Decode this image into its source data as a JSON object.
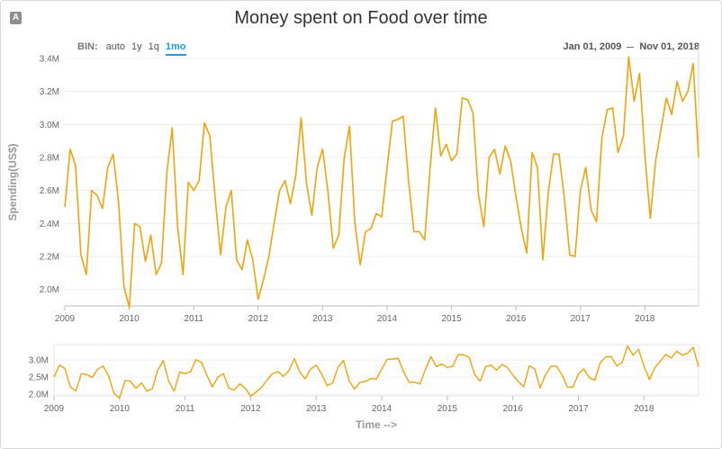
{
  "corner_button": {
    "glyph": "A"
  },
  "bin": {
    "label": "BIN:",
    "options": [
      "auto",
      "1y",
      "1q",
      "1mo"
    ],
    "selected": "1mo"
  },
  "date_range": {
    "start": "Jan 01, 2009",
    "end": "Nov 01, 2018"
  },
  "chart_data": {
    "type": "line",
    "title": "Money spent on Food over time",
    "ylabel": "Spending(US$)",
    "xlabel": "Time -->",
    "line_color": "#f0a30a",
    "ylim": [
      1.9,
      3.4
    ],
    "y_ticks": [
      "2.0M",
      "2.2M",
      "2.4M",
      "2.6M",
      "2.8M",
      "3.0M",
      "3.2M",
      "3.4M"
    ],
    "x_ticks": [
      "2009",
      "2010",
      "2011",
      "2012",
      "2013",
      "2014",
      "2015",
      "2016",
      "2017",
      "2018"
    ],
    "navigator": {
      "ylim": [
        1.95,
        3.45
      ],
      "y_ticks": [
        "2.0M",
        "2.5M",
        "3.0M"
      ]
    },
    "series": [
      {
        "unit": "M US$",
        "start": "2009-01",
        "frequency": "monthly",
        "values": [
          2.5,
          2.85,
          2.75,
          2.21,
          2.09,
          2.6,
          2.57,
          2.49,
          2.74,
          2.82,
          2.53,
          2.02,
          1.89,
          2.4,
          2.38,
          2.17,
          2.33,
          2.09,
          2.16,
          2.71,
          2.98,
          2.38,
          2.09,
          2.65,
          2.6,
          2.66,
          3.01,
          2.93,
          2.55,
          2.21,
          2.5,
          2.6,
          2.18,
          2.12,
          2.3,
          2.18,
          1.94,
          2.06,
          2.2,
          2.41,
          2.6,
          2.66,
          2.52,
          2.69,
          3.04,
          2.64,
          2.45,
          2.74,
          2.85,
          2.59,
          2.25,
          2.33,
          2.79,
          2.99,
          2.4,
          2.15,
          2.35,
          2.37,
          2.46,
          2.44,
          2.74,
          3.02,
          3.03,
          3.05,
          2.66,
          2.35,
          2.35,
          2.3,
          2.73,
          3.1,
          2.81,
          2.88,
          2.78,
          2.82,
          3.16,
          3.15,
          3.07,
          2.58,
          2.38,
          2.8,
          2.85,
          2.7,
          2.87,
          2.78,
          2.56,
          2.37,
          2.22,
          2.83,
          2.74,
          2.18,
          2.58,
          2.82,
          2.82,
          2.56,
          2.21,
          2.2,
          2.6,
          2.74,
          2.48,
          2.41,
          2.92,
          3.09,
          3.1,
          2.83,
          2.93,
          3.41,
          3.14,
          3.31,
          2.82,
          2.43,
          2.78,
          2.97,
          3.16,
          3.06,
          3.26,
          3.14,
          3.2,
          3.37,
          2.8
        ]
      }
    ]
  }
}
